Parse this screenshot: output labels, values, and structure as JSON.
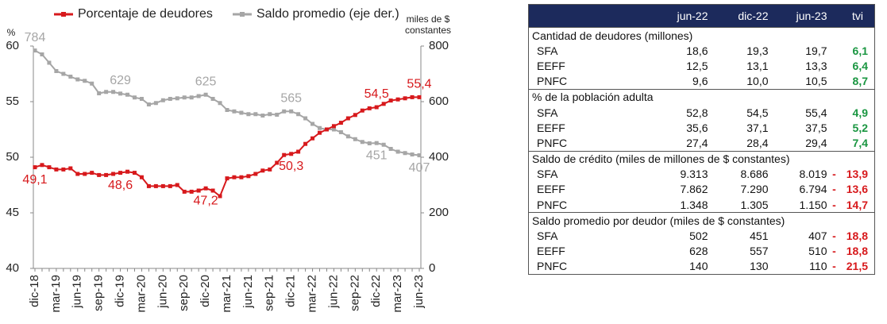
{
  "chart_data": {
    "type": "line",
    "y_label": "%",
    "y2_label": "miles de $ constantes",
    "categories": [
      "dic-18",
      null,
      null,
      "mar-19",
      null,
      null,
      "jun-19",
      null,
      null,
      "sep-19",
      null,
      null,
      "dic-19",
      null,
      null,
      "mar-20",
      null,
      null,
      "jun-20",
      null,
      null,
      "sep-20",
      null,
      null,
      "dic-20",
      null,
      null,
      "mar-21",
      null,
      null,
      "jun-21",
      null,
      null,
      "sep-21",
      null,
      null,
      "dic-21",
      null,
      null,
      "mar-22",
      null,
      null,
      "jun-22",
      null,
      null,
      "sep-22",
      null,
      null,
      "dic-22",
      null,
      null,
      "mar-23",
      null,
      null,
      "jun-23"
    ],
    "ylim": [
      40,
      60
    ],
    "yticks": [
      40,
      45,
      50,
      55,
      60
    ],
    "y2lim": [
      0,
      800
    ],
    "y2ticks": [
      0,
      200,
      400,
      600,
      800
    ],
    "series": [
      {
        "name": "Porcentaje de deudores",
        "color": "#d7191c",
        "values": [
          49.1,
          49.3,
          49.1,
          48.9,
          48.9,
          49.0,
          48.5,
          48.5,
          48.6,
          48.4,
          48.4,
          48.5,
          48.6,
          48.7,
          48.6,
          48.2,
          47.4,
          47.4,
          47.4,
          47.4,
          47.5,
          46.9,
          46.9,
          47.0,
          47.2,
          47.0,
          46.5,
          48.1,
          48.2,
          48.2,
          48.3,
          48.5,
          48.8,
          48.9,
          49.5,
          50.2,
          50.3,
          50.5,
          51.2,
          51.7,
          52.2,
          52.5,
          52.8,
          53.1,
          53.5,
          53.8,
          54.2,
          54.4,
          54.5,
          54.8,
          55.1,
          55.2,
          55.3,
          55.4,
          55.4
        ],
        "value_labels": [
          "49,1",
          null,
          null,
          null,
          null,
          null,
          null,
          null,
          null,
          null,
          null,
          null,
          "48,6",
          null,
          null,
          null,
          null,
          null,
          null,
          null,
          null,
          null,
          null,
          null,
          "47,2",
          null,
          null,
          null,
          null,
          null,
          null,
          null,
          null,
          null,
          null,
          null,
          "50,3",
          null,
          null,
          null,
          null,
          null,
          null,
          null,
          null,
          null,
          null,
          null,
          "54,5",
          null,
          null,
          null,
          null,
          null,
          "55,4"
        ]
      },
      {
        "name": "Saldo promedio (eje der.)",
        "color": "#a6a6a6",
        "axis": "y2",
        "values": [
          784,
          770,
          740,
          710,
          700,
          690,
          680,
          675,
          665,
          630,
          635,
          635,
          629,
          625,
          615,
          610,
          590,
          595,
          605,
          610,
          612,
          615,
          615,
          620,
          625,
          610,
          595,
          570,
          565,
          560,
          555,
          555,
          550,
          555,
          553,
          565,
          565,
          555,
          540,
          520,
          505,
          500,
          500,
          490,
          475,
          465,
          455,
          450,
          451,
          445,
          430,
          420,
          415,
          410,
          407
        ],
        "value_labels": [
          "784",
          null,
          null,
          null,
          null,
          null,
          null,
          null,
          null,
          null,
          null,
          null,
          "629",
          null,
          null,
          null,
          null,
          null,
          null,
          null,
          null,
          null,
          null,
          null,
          "625",
          null,
          null,
          null,
          null,
          null,
          null,
          null,
          null,
          null,
          null,
          null,
          "565",
          null,
          null,
          null,
          null,
          null,
          null,
          null,
          null,
          null,
          null,
          null,
          "451",
          null,
          null,
          null,
          null,
          null,
          "407"
        ]
      }
    ]
  },
  "table": {
    "header": [
      "jun-22",
      "dic-22",
      "jun-23",
      "tvi"
    ],
    "sections": [
      {
        "title": "Cantidad de deudores (millones)",
        "rows": [
          {
            "label": "SFA",
            "values": [
              "18,6",
              "19,3",
              "19,7"
            ],
            "tvi": "6,1"
          },
          {
            "label": "EEFF",
            "values": [
              "12,5",
              "13,1",
              "13,3"
            ],
            "tvi": "6,4"
          },
          {
            "label": "PNFC",
            "values": [
              "9,6",
              "10,0",
              "10,5"
            ],
            "tvi": "8,7"
          }
        ]
      },
      {
        "title": "% de la población adulta",
        "rows": [
          {
            "label": "SFA",
            "values": [
              "52,8",
              "54,5",
              "55,4"
            ],
            "tvi": "4,9"
          },
          {
            "label": "EEFF",
            "values": [
              "35,6",
              "37,1",
              "37,5"
            ],
            "tvi": "5,2"
          },
          {
            "label": "PNFC",
            "values": [
              "27,4",
              "28,4",
              "29,4"
            ],
            "tvi": "7,4"
          }
        ]
      },
      {
        "title": "Saldo de crédito (miles de millones de $ constantes)",
        "rows": [
          {
            "label": "SFA",
            "values": [
              "9.313",
              "8.686",
              "8.019"
            ],
            "sign": "-",
            "tvi": "13,9"
          },
          {
            "label": "EEFF",
            "values": [
              "7.862",
              "7.290",
              "6.794"
            ],
            "sign": "-",
            "tvi": "13,6"
          },
          {
            "label": "PNFC",
            "values": [
              "1.348",
              "1.305",
              "1.150"
            ],
            "sign": "-",
            "tvi": "14,7"
          }
        ]
      },
      {
        "title": "Saldo promedio por deudor (miles de $ constantes)",
        "rows": [
          {
            "label": "SFA",
            "values": [
              "502",
              "451",
              "407"
            ],
            "sign": "-",
            "tvi": "18,8"
          },
          {
            "label": "EEFF",
            "values": [
              "628",
              "557",
              "510"
            ],
            "sign": "-",
            "tvi": "18,8"
          },
          {
            "label": "PNFC",
            "values": [
              "140",
              "130",
              "110"
            ],
            "sign": "-",
            "tvi": "21,5"
          }
        ]
      }
    ]
  }
}
